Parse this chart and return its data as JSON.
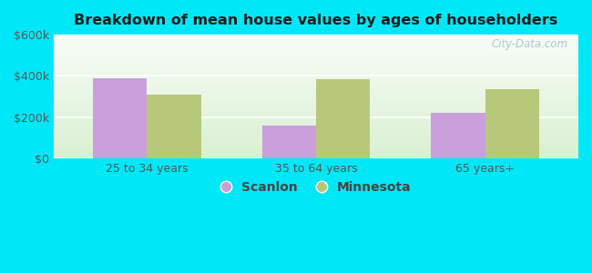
{
  "title": "Breakdown of mean house values by ages of householders",
  "categories": [
    "25 to 34 years",
    "35 to 64 years",
    "65 years+"
  ],
  "scanlon": [
    390000,
    160000,
    220000
  ],
  "minnesota": [
    310000,
    385000,
    335000
  ],
  "scanlon_color": "#c9a0dc",
  "minnesota_color": "#b8c87a",
  "ylim": [
    0,
    600000
  ],
  "yticks": [
    0,
    200000,
    400000,
    600000
  ],
  "ytick_labels": [
    "$0",
    "$200k",
    "$400k",
    "$600k"
  ],
  "background_outer": "#00e8f8",
  "bar_width": 0.32,
  "legend_scanlon": "Scanlon",
  "legend_minnesota": "Minnesota",
  "watermark": "City-Data.com"
}
